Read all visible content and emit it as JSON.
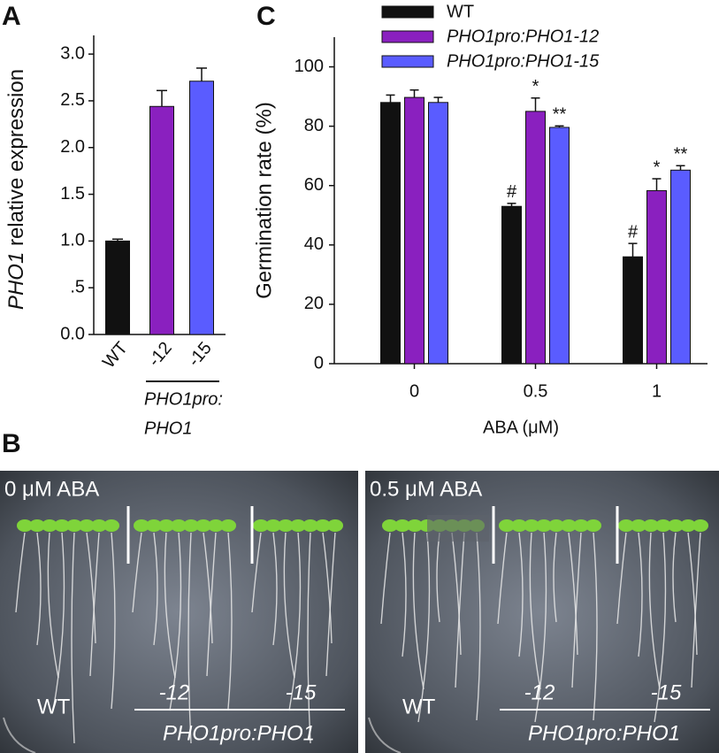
{
  "panels": {
    "a": "A",
    "b": "B",
    "c": "C"
  },
  "chart_data": [
    {
      "type": "bar",
      "ylabel_italic": "PHO1",
      "ylabel": "relative expression",
      "categories": [
        "WT",
        "-12",
        "-15"
      ],
      "values": [
        1.0,
        2.44,
        2.71
      ],
      "errors": [
        0.02,
        0.17,
        0.14
      ],
      "colors": [
        "#111111",
        "#8a20bf",
        "#5a5cff"
      ],
      "ylim": [
        0,
        3.2
      ],
      "yticks": [
        {
          "value": 0,
          "label": "0.0"
        },
        {
          "value": 0.5,
          "label": ".5"
        },
        {
          "value": 1,
          "label": "1.0"
        },
        1.5,
        {
          "value": 2,
          "label": "2.0"
        },
        2.5,
        {
          "value": 3,
          "label": "3.0"
        }
      ],
      "group_label": [
        "PHO1pro:",
        "PHO1"
      ]
    },
    {
      "type": "grouped_bar",
      "xlabel": "ABA (μM)",
      "ylabel": "Germination rate (%)",
      "categories": [
        "0",
        "0.5",
        "1"
      ],
      "series": [
        {
          "name": "WT",
          "color": "#111111",
          "values": [
            88,
            53,
            36
          ],
          "errors": [
            2.5,
            1,
            4.5
          ],
          "marks": [
            null,
            "#",
            "#"
          ]
        },
        {
          "name": "PHO1pro:PHO1-12",
          "color": "#8a20bf",
          "values": [
            89.7,
            85,
            58.3
          ],
          "errors": [
            2.5,
            4.5,
            4
          ],
          "marks": [
            null,
            "*",
            "*"
          ]
        },
        {
          "name": "PHO1pro:PHO1-15",
          "color": "#5a5cff",
          "values": [
            88,
            79.6,
            65.2
          ],
          "errors": [
            1.7,
            0.5,
            1.5
          ],
          "marks": [
            null,
            "**",
            "**"
          ]
        }
      ],
      "ylim": [
        0,
        110
      ],
      "yticks": [
        0,
        20,
        40,
        60,
        80,
        100
      ]
    }
  ],
  "photos": [
    {
      "condition": "0 μM ABA",
      "genotypes": [
        "WT",
        "-12",
        "-15"
      ],
      "group": "PHO1pro:PHO1"
    },
    {
      "condition": "0.5 μM ABA",
      "genotypes": [
        "WT",
        "-12",
        "-15"
      ],
      "group": "PHO1pro:PHO1"
    }
  ]
}
